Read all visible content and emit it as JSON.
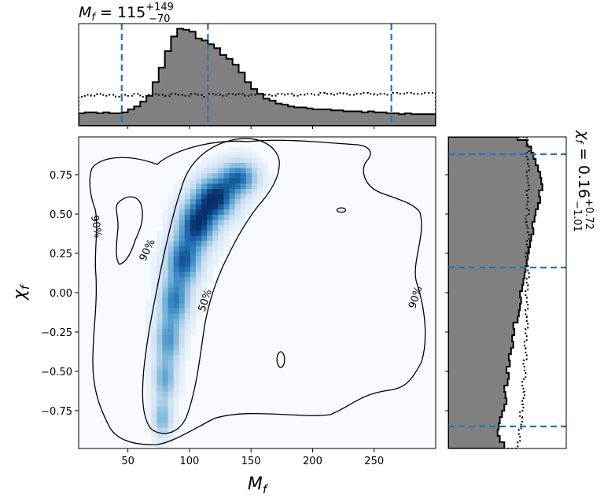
{
  "chart_data": {
    "type": "corner-2d-density",
    "title_top": {
      "prefix": "M",
      "sub": "f",
      "value": " = 115",
      "sup": "+149",
      "low": "−70"
    },
    "title_right": {
      "prefix": "χ",
      "sub": "f",
      "value": " = 0.16",
      "sup": "+0.72",
      "low": "−1.01"
    },
    "xlabel": {
      "main": "M",
      "sub": "f"
    },
    "ylabel": {
      "main": "χ",
      "sub": "f"
    },
    "xlim": [
      10,
      300
    ],
    "ylim": [
      -0.99,
      0.99
    ],
    "xticks": [
      50,
      100,
      150,
      200,
      250
    ],
    "xtick_labels": [
      "50",
      "100",
      "150",
      "200",
      "250"
    ],
    "yticks": [
      -0.75,
      -0.5,
      -0.25,
      0.0,
      0.25,
      0.5,
      0.75
    ],
    "ytick_labels": [
      "−0.75",
      "−0.50",
      "−0.25",
      "0.00",
      "0.25",
      "0.50",
      "0.75"
    ],
    "mass_quantiles": [
      45,
      115,
      264
    ],
    "spin_quantiles": [
      -0.85,
      0.16,
      0.88
    ],
    "contour_labels": [
      {
        "text": "90%",
        "x": 24,
        "y": 0.42,
        "angle": 80
      },
      {
        "text": "90%",
        "x": 66,
        "y": 0.27,
        "angle": -65
      },
      {
        "text": "50%",
        "x": 113,
        "y": -0.05,
        "angle": -72
      },
      {
        "text": "90%",
        "x": 284,
        "y": -0.03,
        "angle": -72
      }
    ],
    "density_ridge": [
      {
        "x": 78,
        "y": -0.8,
        "sx": 5,
        "sy": 0.08
      },
      {
        "x": 80,
        "y": -0.55,
        "sx": 6,
        "sy": 0.09
      },
      {
        "x": 83,
        "y": -0.3,
        "sx": 7,
        "sy": 0.1
      },
      {
        "x": 88,
        "y": -0.05,
        "sx": 8,
        "sy": 0.1
      },
      {
        "x": 95,
        "y": 0.2,
        "sx": 9,
        "sy": 0.1
      },
      {
        "x": 106,
        "y": 0.43,
        "sx": 10,
        "sy": 0.1
      },
      {
        "x": 121,
        "y": 0.6,
        "sx": 11,
        "sy": 0.09
      },
      {
        "x": 140,
        "y": 0.73,
        "sx": 10,
        "sy": 0.07
      }
    ],
    "density_weights": [
      0.45,
      0.5,
      0.58,
      0.68,
      0.82,
      0.95,
      1.0,
      0.75
    ],
    "mass_hist_bins": [
      10,
      15,
      20,
      25,
      30,
      35,
      40,
      45,
      50,
      55,
      60,
      65,
      70,
      75,
      80,
      85,
      90,
      95,
      100,
      105,
      110,
      115,
      120,
      125,
      130,
      135,
      140,
      145,
      150,
      155,
      160,
      165,
      170,
      175,
      180,
      185,
      190,
      195,
      200,
      205,
      210,
      215,
      220,
      225,
      230,
      235,
      240,
      245,
      250,
      255,
      260,
      265,
      270,
      275,
      280,
      285,
      290,
      295,
      300
    ],
    "mass_hist_post": [
      0.13,
      0.14,
      0.14,
      0.13,
      0.14,
      0.13,
      0.13,
      0.14,
      0.17,
      0.2,
      0.25,
      0.31,
      0.45,
      0.6,
      0.77,
      0.92,
      1.0,
      0.99,
      0.97,
      0.9,
      0.88,
      0.84,
      0.8,
      0.73,
      0.69,
      0.63,
      0.55,
      0.45,
      0.38,
      0.33,
      0.28,
      0.26,
      0.23,
      0.22,
      0.2,
      0.19,
      0.19,
      0.18,
      0.17,
      0.17,
      0.17,
      0.16,
      0.16,
      0.15,
      0.15,
      0.15,
      0.14,
      0.15,
      0.14,
      0.14,
      0.13,
      0.13,
      0.12,
      0.13,
      0.12,
      0.12,
      0.12,
      0.12
    ],
    "mass_hist_prior": [
      0.3,
      0.32,
      0.31,
      0.33,
      0.31,
      0.32,
      0.3,
      0.32,
      0.31,
      0.33,
      0.3,
      0.32,
      0.33,
      0.32,
      0.31,
      0.33,
      0.32,
      0.31,
      0.33,
      0.32,
      0.3,
      0.33,
      0.32,
      0.31,
      0.33,
      0.32,
      0.33,
      0.31,
      0.32,
      0.33,
      0.32,
      0.31,
      0.33,
      0.32,
      0.33,
      0.31,
      0.32,
      0.33,
      0.32,
      0.34,
      0.33,
      0.32,
      0.34,
      0.33,
      0.32,
      0.33,
      0.34,
      0.33,
      0.32,
      0.33,
      0.32,
      0.34,
      0.33,
      0.34,
      0.33,
      0.33,
      0.34,
      0.34
    ],
    "spin_hist_bins": [
      -0.99,
      -0.95,
      -0.91,
      -0.87,
      -0.83,
      -0.79,
      -0.75,
      -0.71,
      -0.67,
      -0.63,
      -0.59,
      -0.55,
      -0.51,
      -0.47,
      -0.43,
      -0.39,
      -0.35,
      -0.31,
      -0.27,
      -0.23,
      -0.19,
      -0.15,
      -0.11,
      -0.07,
      -0.03,
      0.01,
      0.05,
      0.09,
      0.13,
      0.17,
      0.21,
      0.25,
      0.29,
      0.33,
      0.37,
      0.41,
      0.45,
      0.49,
      0.53,
      0.57,
      0.61,
      0.65,
      0.69,
      0.73,
      0.77,
      0.81,
      0.85,
      0.89,
      0.93,
      0.97,
      0.99
    ],
    "spin_hist_post": [
      0.5,
      0.46,
      0.44,
      0.45,
      0.46,
      0.48,
      0.5,
      0.52,
      0.51,
      0.5,
      0.53,
      0.54,
      0.52,
      0.55,
      0.54,
      0.56,
      0.58,
      0.57,
      0.59,
      0.58,
      0.62,
      0.63,
      0.64,
      0.65,
      0.64,
      0.66,
      0.67,
      0.68,
      0.69,
      0.7,
      0.71,
      0.72,
      0.73,
      0.74,
      0.76,
      0.75,
      0.77,
      0.78,
      0.8,
      0.82,
      0.81,
      0.84,
      0.83,
      0.82,
      0.8,
      0.78,
      0.76,
      0.74,
      0.7,
      0.62
    ],
    "spin_hist_prior": [
      0.62,
      0.64,
      0.63,
      0.65,
      0.66,
      0.64,
      0.67,
      0.66,
      0.68,
      0.67,
      0.66,
      0.69,
      0.68,
      0.67,
      0.7,
      0.69,
      0.68,
      0.7,
      0.69,
      0.71,
      0.7,
      0.69,
      0.71,
      0.7,
      0.69,
      0.71,
      0.7,
      0.72,
      0.71,
      0.7,
      0.69,
      0.71,
      0.7,
      0.72,
      0.71,
      0.7,
      0.69,
      0.72,
      0.7,
      0.71,
      0.7,
      0.72,
      0.71,
      0.7,
      0.72,
      0.71,
      0.7,
      0.72,
      0.71,
      0.7
    ],
    "colors": {
      "density": "#08519c",
      "quantile_line": "#1f77b4",
      "hist_fill": "#808080",
      "contour": "#000000"
    }
  }
}
